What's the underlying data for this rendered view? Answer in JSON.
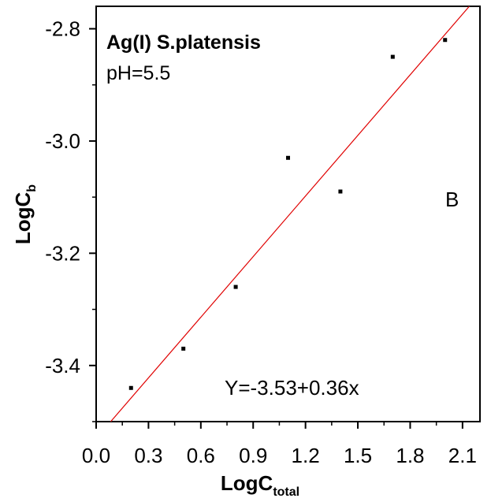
{
  "chart_data": {
    "type": "scatter",
    "title": "Ag(I) S.platensis",
    "subtitle": "pH=5.5",
    "panel_label": "B",
    "equation": "Y=-3.53+0.36x",
    "xlabel": {
      "main": "LogC",
      "sub": "total"
    },
    "ylabel": {
      "main": "LogC",
      "sub": "b"
    },
    "xlim": [
      0.0,
      2.2
    ],
    "ylim": [
      -3.5,
      -2.76
    ],
    "x_ticks": [
      "0.0",
      "0.3",
      "0.6",
      "0.9",
      "1.2",
      "1.5",
      "1.8",
      "2.1"
    ],
    "x_tick_values": [
      0.0,
      0.3,
      0.6,
      0.9,
      1.2,
      1.5,
      1.8,
      2.1
    ],
    "y_ticks": [
      "-2.8",
      "-3.0",
      "-3.2",
      "-3.4"
    ],
    "y_tick_values": [
      -2.8,
      -3.0,
      -3.2,
      -3.4
    ],
    "grid": false,
    "series": [
      {
        "x": [
          0.2,
          0.5,
          0.8,
          1.1,
          1.4,
          1.7,
          2.0
        ],
        "y": [
          -3.44,
          -3.37,
          -3.26,
          -3.03,
          -3.09,
          -2.85,
          -2.82
        ],
        "color": "#000000"
      }
    ],
    "fit": {
      "intercept": -3.53,
      "slope": 0.36,
      "color": "#e00000"
    }
  }
}
